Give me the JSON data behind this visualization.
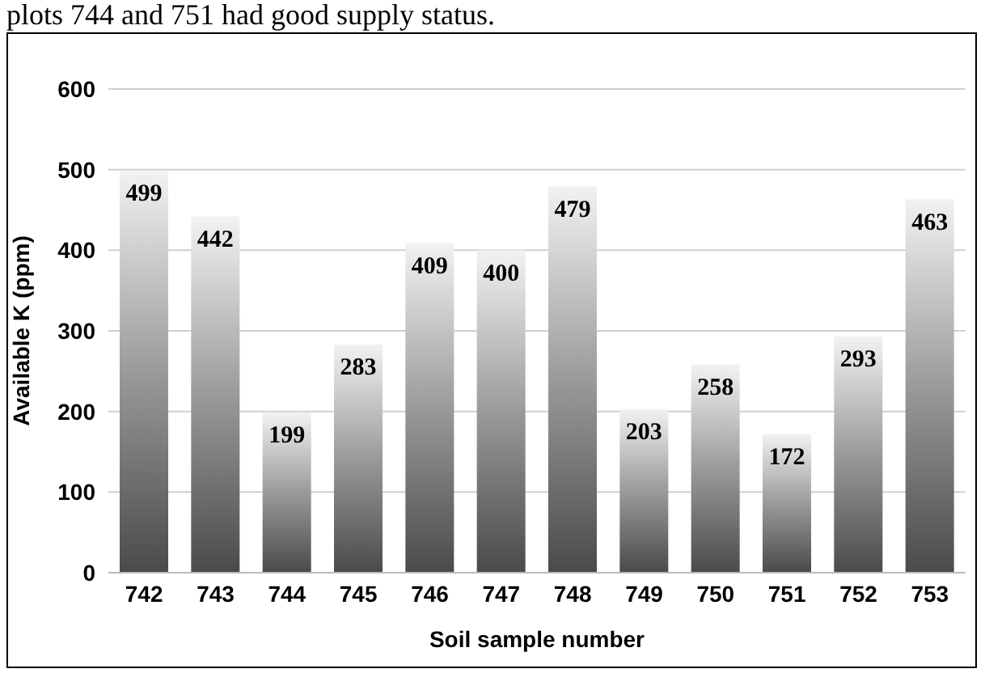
{
  "chart_data": {
    "type": "bar",
    "xlabel": "Soil sample number",
    "ylabel": "Available K (ppm)",
    "annotations": [
      "plots 744 and 751 had good supply status."
    ],
    "categories": [
      "742",
      "743",
      "744",
      "745",
      "746",
      "747",
      "748",
      "749",
      "750",
      "751",
      "752",
      "753"
    ],
    "values": [
      499,
      442,
      199,
      283,
      409,
      400,
      479,
      203,
      258,
      172,
      293,
      463
    ],
    "color": "#9a9a9a",
    "ylim": [
      0,
      600
    ],
    "yticks": [
      0,
      100,
      200,
      300,
      400,
      500,
      600
    ],
    "grid": "y",
    "data_labels": true
  }
}
